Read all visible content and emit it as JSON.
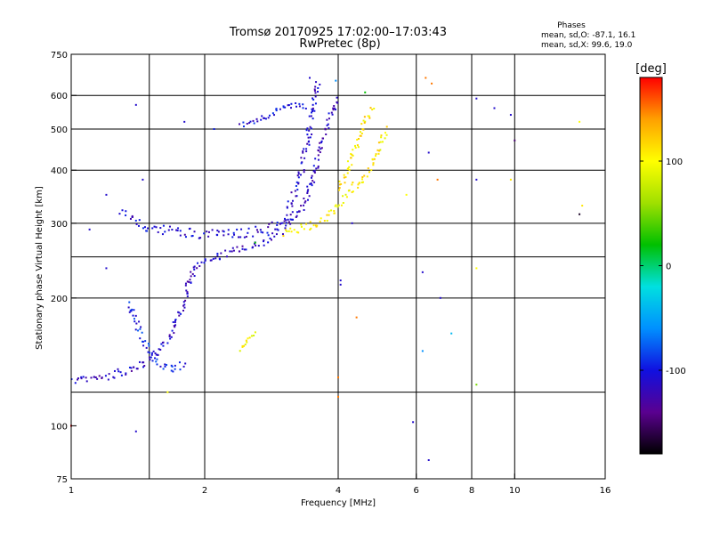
{
  "header": {
    "title_line1": "Tromsø 20170925 17:02:00–17:03:43",
    "title_line2": "RwPretec (8p)",
    "stats_title": "Phases",
    "stats_o": "mean, sd,O: -87.1, 16.1",
    "stats_x": "mean, sd,X:  99.6, 19.0"
  },
  "colorbar": {
    "unit_label": "[deg]",
    "ticks": [
      {
        "value": 100,
        "label": "100"
      },
      {
        "value": 0,
        "label": "0"
      },
      {
        "value": -100,
        "label": "-100"
      }
    ],
    "range": [
      -180,
      180
    ],
    "colors": [
      "#000000",
      "#5a0090",
      "#1010e0",
      "#0090ff",
      "#00e0e0",
      "#00c000",
      "#a0e000",
      "#ffff00",
      "#ffa000",
      "#ff0000"
    ]
  },
  "chart_data": {
    "type": "scatter",
    "title": "Tromsø 20170925 17:02:00–17:03:43",
    "subtitle": "RwPretec (8p)",
    "xlabel": "Frequency [MHz]",
    "ylabel": "Stationary phase Virtual Height [km]",
    "xscale": "log",
    "yscale": "log",
    "xlim": [
      1,
      16
    ],
    "ylim": [
      75,
      750
    ],
    "grid": true,
    "x_ticks": [
      {
        "value": 1,
        "label": "1"
      },
      {
        "value": 2,
        "label": "2"
      },
      {
        "value": 4,
        "label": "4"
      },
      {
        "value": 6,
        "label": "6"
      },
      {
        "value": 8,
        "label": "8"
      },
      {
        "value": 10,
        "label": "10"
      },
      {
        "value": 16,
        "label": "16"
      }
    ],
    "y_ticks": [
      {
        "value": 75,
        "label": "75"
      },
      {
        "value": 100,
        "label": "100"
      },
      {
        "value": 200,
        "label": "200"
      },
      {
        "value": 300,
        "label": "300"
      },
      {
        "value": 400,
        "label": "400"
      },
      {
        "value": 500,
        "label": "500"
      },
      {
        "value": 600,
        "label": "600"
      },
      {
        "value": 750,
        "label": "750"
      }
    ],
    "x_grid": [
      1.5,
      2,
      4,
      6,
      8,
      10
    ],
    "y_grid": [
      120,
      200,
      250,
      300,
      400,
      500,
      600
    ],
    "color_scale": {
      "label": "[deg]",
      "range": [
        -180,
        180
      ]
    },
    "segments": [
      {
        "name": "",
        "phase": -115,
        "jitter": 6,
        "points": [
          [
            1.0,
            128
          ],
          [
            1.1,
            128
          ],
          [
            1.2,
            131
          ],
          [
            1.3,
            134
          ],
          [
            1.4,
            137
          ],
          [
            1.5,
            142
          ],
          [
            1.6,
            152
          ],
          [
            1.7,
            170
          ],
          [
            1.8,
            195
          ],
          [
            1.85,
            220
          ],
          [
            1.9,
            238
          ],
          [
            2.0,
            245
          ],
          [
            2.2,
            252
          ],
          [
            2.5,
            262
          ],
          [
            2.8,
            275
          ],
          [
            3.0,
            290
          ],
          [
            3.2,
            310
          ],
          [
            3.4,
            340
          ],
          [
            3.5,
            380
          ],
          [
            3.6,
            430
          ],
          [
            3.7,
            480
          ],
          [
            3.8,
            520
          ],
          [
            3.9,
            560
          ],
          [
            4.0,
            590
          ]
        ]
      },
      {
        "name": "",
        "phase": -110,
        "jitter": 7,
        "points": [
          [
            1.3,
            320
          ],
          [
            1.4,
            300
          ],
          [
            1.5,
            292
          ],
          [
            1.7,
            288
          ],
          [
            1.9,
            284
          ],
          [
            2.2,
            282
          ],
          [
            2.5,
            285
          ],
          [
            2.8,
            292
          ],
          [
            3.0,
            300
          ],
          [
            3.1,
            320
          ],
          [
            3.2,
            360
          ],
          [
            3.3,
            400
          ],
          [
            3.4,
            450
          ],
          [
            3.45,
            500
          ],
          [
            3.5,
            540
          ],
          [
            3.55,
            600
          ],
          [
            3.6,
            650
          ]
        ]
      },
      {
        "name": "",
        "phase": -95,
        "jitter": 6,
        "points": [
          [
            1.35,
            195
          ],
          [
            1.4,
            175
          ],
          [
            1.45,
            160
          ],
          [
            1.5,
            150
          ],
          [
            1.6,
            140
          ],
          [
            1.7,
            135
          ],
          [
            1.8,
            140
          ]
        ]
      },
      {
        "name": "",
        "phase": -105,
        "jitter": 4,
        "points": [
          [
            2.4,
            510
          ],
          [
            2.6,
            525
          ],
          [
            2.8,
            540
          ],
          [
            3.0,
            560
          ],
          [
            3.2,
            570
          ],
          [
            3.4,
            560
          ]
        ]
      },
      {
        "name": "",
        "phase": 105,
        "jitter": 6,
        "points": [
          [
            3.0,
            285
          ],
          [
            3.3,
            292
          ],
          [
            3.6,
            302
          ],
          [
            3.8,
            315
          ],
          [
            4.0,
            330
          ],
          [
            4.2,
            350
          ],
          [
            4.4,
            370
          ],
          [
            4.6,
            390
          ],
          [
            4.8,
            420
          ],
          [
            5.0,
            460
          ],
          [
            5.1,
            500
          ]
        ]
      },
      {
        "name": "",
        "phase": 110,
        "jitter": 5,
        "points": [
          [
            4.0,
            360
          ],
          [
            4.2,
            400
          ],
          [
            4.4,
            460
          ],
          [
            4.6,
            520
          ],
          [
            4.8,
            560
          ]
        ]
      },
      {
        "name": "",
        "phase": 95,
        "jitter": 3,
        "points": [
          [
            2.4,
            150
          ],
          [
            2.5,
            160
          ],
          [
            2.6,
            165
          ]
        ]
      }
    ],
    "points": [
      {
        "x": 1.4,
        "y": 570,
        "phase": -110
      },
      {
        "x": 1.8,
        "y": 520,
        "phase": -110
      },
      {
        "x": 2.1,
        "y": 500,
        "phase": -95
      },
      {
        "x": 1.2,
        "y": 350,
        "phase": -110
      },
      {
        "x": 1.45,
        "y": 380,
        "phase": -110
      },
      {
        "x": 1.2,
        "y": 235,
        "phase": -110
      },
      {
        "x": 1.0,
        "y": 100,
        "phase": 180
      },
      {
        "x": 1.4,
        "y": 97,
        "phase": -110
      },
      {
        "x": 1.65,
        "y": 120,
        "phase": 100
      },
      {
        "x": 3.45,
        "y": 660,
        "phase": -110
      },
      {
        "x": 3.95,
        "y": 650,
        "phase": -60
      },
      {
        "x": 4.6,
        "y": 610,
        "phase": 20
      },
      {
        "x": 6.3,
        "y": 660,
        "phase": 150
      },
      {
        "x": 6.5,
        "y": 640,
        "phase": 150
      },
      {
        "x": 8.2,
        "y": 590,
        "phase": -110
      },
      {
        "x": 9.0,
        "y": 560,
        "phase": -110
      },
      {
        "x": 9.8,
        "y": 540,
        "phase": -110
      },
      {
        "x": 10.0,
        "y": 470,
        "phase": -150
      },
      {
        "x": 14.0,
        "y": 520,
        "phase": 100
      },
      {
        "x": 14.0,
        "y": 315,
        "phase": -170
      },
      {
        "x": 14.2,
        "y": 330,
        "phase": 110
      },
      {
        "x": 6.4,
        "y": 440,
        "phase": -110
      },
      {
        "x": 6.7,
        "y": 380,
        "phase": 150
      },
      {
        "x": 8.2,
        "y": 380,
        "phase": -110
      },
      {
        "x": 9.8,
        "y": 380,
        "phase": 110
      },
      {
        "x": 5.7,
        "y": 350,
        "phase": 100
      },
      {
        "x": 4.3,
        "y": 300,
        "phase": -110
      },
      {
        "x": 4.05,
        "y": 215,
        "phase": -110
      },
      {
        "x": 4.05,
        "y": 220,
        "phase": -110
      },
      {
        "x": 4.4,
        "y": 180,
        "phase": 150
      },
      {
        "x": 6.2,
        "y": 230,
        "phase": -110
      },
      {
        "x": 6.8,
        "y": 200,
        "phase": -110
      },
      {
        "x": 7.2,
        "y": 165,
        "phase": -40
      },
      {
        "x": 6.2,
        "y": 150,
        "phase": -60
      },
      {
        "x": 8.2,
        "y": 235,
        "phase": 100
      },
      {
        "x": 8.2,
        "y": 125,
        "phase": 50
      },
      {
        "x": 4.0,
        "y": 130,
        "phase": 150
      },
      {
        "x": 4.0,
        "y": 117,
        "phase": 150
      },
      {
        "x": 5.9,
        "y": 102,
        "phase": -110
      },
      {
        "x": 6.4,
        "y": 83,
        "phase": -110
      },
      {
        "x": 1.1,
        "y": 290,
        "phase": -110
      },
      {
        "x": 2.6,
        "y": 270,
        "phase": 20
      }
    ]
  }
}
